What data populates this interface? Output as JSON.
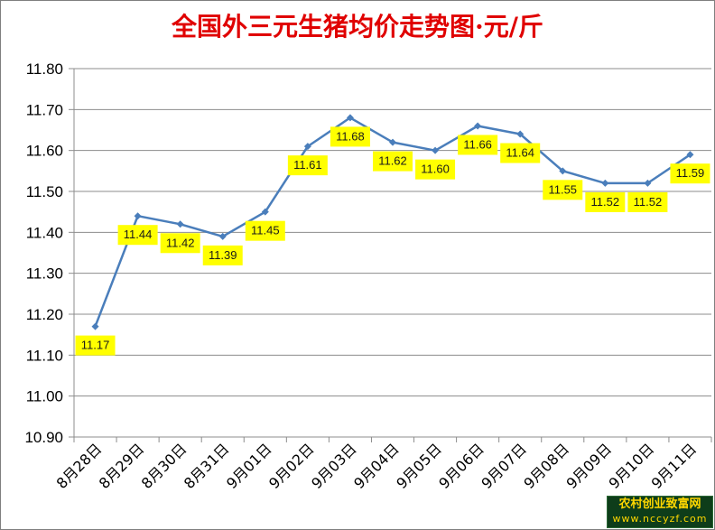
{
  "chart_data": {
    "type": "line",
    "title": "全国外三元生猪均价走势图·元/斤",
    "categories": [
      "8月28日",
      "8月29日",
      "8月30日",
      "8月31日",
      "9月01日",
      "9月02日",
      "9月03日",
      "9月04日",
      "9月05日",
      "9月06日",
      "9月07日",
      "9月08日",
      "9月09日",
      "9月10日",
      "9月11日"
    ],
    "values": [
      11.17,
      11.44,
      11.42,
      11.39,
      11.45,
      11.61,
      11.68,
      11.62,
      11.6,
      11.66,
      11.64,
      11.55,
      11.52,
      11.52,
      11.59
    ],
    "data_labels": [
      "11.17",
      "11.44",
      "11.42",
      "11.39",
      "11.45",
      "11.61",
      "11.68",
      "11.62",
      "11.60",
      "11.66",
      "11.64",
      "11.55",
      "11.52",
      "11.52",
      "11.59"
    ],
    "ylim": [
      10.9,
      11.8
    ],
    "yticks": [
      "10.90",
      "11.00",
      "11.10",
      "11.20",
      "11.30",
      "11.40",
      "11.50",
      "11.60",
      "11.70",
      "11.80"
    ],
    "grid": true,
    "legend": "none",
    "colors": {
      "line": "#4a7ebb",
      "label_bg": "#ffff00",
      "title": "#e00000"
    }
  },
  "watermark": {
    "line1": "农村创业致富网",
    "line2": "www.nccyzf.com"
  }
}
